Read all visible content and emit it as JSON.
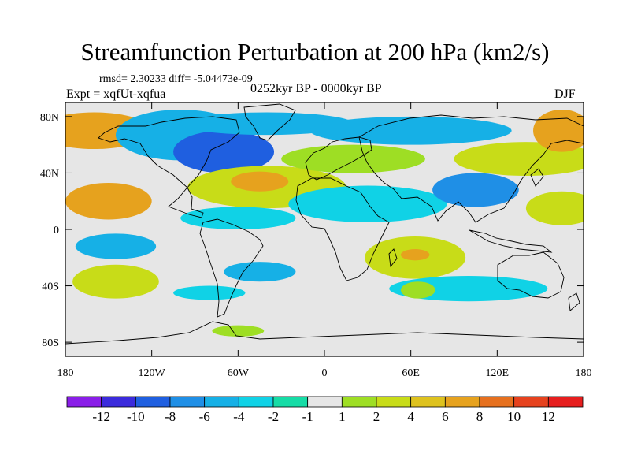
{
  "header": {
    "title": "Streamfunction Perturbation at 200 hPa (km2/s)",
    "stats": "rmsd= 2.30233 diff= -5.04473e-09",
    "experiment": "Expt = xqfUt-xqfua",
    "period": "0252kyr BP - 0000kyr BP",
    "season": "DJF"
  },
  "chart_data": {
    "type": "heatmap",
    "title": "Streamfunction Perturbation at 200 hPa (km2/s)",
    "xlabel": "",
    "ylabel": "",
    "xlim": [
      -180,
      180
    ],
    "ylim": [
      -90,
      90
    ],
    "x_ticks": [
      {
        "value": -180,
        "label": "180"
      },
      {
        "value": -120,
        "label": "120W"
      },
      {
        "value": -60,
        "label": "60W"
      },
      {
        "value": 0,
        "label": "0"
      },
      {
        "value": 60,
        "label": "60E"
      },
      {
        "value": 120,
        "label": "120E"
      },
      {
        "value": 180,
        "label": "180"
      }
    ],
    "y_ticks": [
      {
        "value": 80,
        "label": "80N"
      },
      {
        "value": 40,
        "label": "40N"
      },
      {
        "value": 0,
        "label": "0"
      },
      {
        "value": -40,
        "label": "40S"
      },
      {
        "value": -80,
        "label": "80S"
      }
    ],
    "colorbar": {
      "colors": [
        "#8a1ee8",
        "#3b2bdc",
        "#1f5fe0",
        "#1f8fe6",
        "#16b0e6",
        "#10d2e6",
        "#16dca6",
        "#e6e6e6",
        "#9ede24",
        "#c8dc18",
        "#dec21e",
        "#e6a21e",
        "#e6701e",
        "#e6421e",
        "#e61e1e"
      ],
      "labels": [
        "-12",
        "-10",
        "-8",
        "-6",
        "-4",
        "-2",
        "-1",
        "1",
        "2",
        "4",
        "6",
        "8",
        "10",
        "12"
      ]
    },
    "anomalies": [
      {
        "lon": -160,
        "lat": 70,
        "rx": 40,
        "ry": 13,
        "level": 6
      },
      {
        "lon": -150,
        "lat": 20,
        "rx": 30,
        "ry": 13,
        "level": 6
      },
      {
        "lon": -145,
        "lat": -12,
        "rx": 28,
        "ry": 9,
        "level": -4
      },
      {
        "lon": -145,
        "lat": -37,
        "rx": 30,
        "ry": 12,
        "level": 4
      },
      {
        "lon": -100,
        "lat": 67,
        "rx": 45,
        "ry": 18,
        "level": -4
      },
      {
        "lon": -70,
        "lat": 55,
        "rx": 35,
        "ry": 15,
        "level": -8
      },
      {
        "lon": -40,
        "lat": 75,
        "rx": 60,
        "ry": 8,
        "level": -4
      },
      {
        "lon": -40,
        "lat": 30,
        "rx": 55,
        "ry": 15,
        "level": 4
      },
      {
        "lon": -45,
        "lat": 34,
        "rx": 20,
        "ry": 7,
        "level": 6
      },
      {
        "lon": -60,
        "lat": 8,
        "rx": 40,
        "ry": 8,
        "level": -2
      },
      {
        "lon": -45,
        "lat": -30,
        "rx": 25,
        "ry": 7,
        "level": -4
      },
      {
        "lon": 20,
        "lat": 50,
        "rx": 50,
        "ry": 10,
        "level": 2
      },
      {
        "lon": 60,
        "lat": 70,
        "rx": 70,
        "ry": 10,
        "level": -4
      },
      {
        "lon": 30,
        "lat": 18,
        "rx": 55,
        "ry": 13,
        "level": -2
      },
      {
        "lon": 105,
        "lat": 28,
        "rx": 30,
        "ry": 12,
        "level": -6
      },
      {
        "lon": 140,
        "lat": 50,
        "rx": 50,
        "ry": 12,
        "level": 4
      },
      {
        "lon": 165,
        "lat": 70,
        "rx": 20,
        "ry": 15,
        "level": 6
      },
      {
        "lon": 165,
        "lat": 15,
        "rx": 25,
        "ry": 12,
        "level": 4
      },
      {
        "lon": 63,
        "lat": -20,
        "rx": 35,
        "ry": 15,
        "level": 4
      },
      {
        "lon": 63,
        "lat": -18,
        "rx": 10,
        "ry": 4,
        "level": 6
      },
      {
        "lon": 100,
        "lat": -42,
        "rx": 55,
        "ry": 9,
        "level": -2
      },
      {
        "lon": 65,
        "lat": -43,
        "rx": 12,
        "ry": 6,
        "level": 2
      },
      {
        "lon": -80,
        "lat": -45,
        "rx": 25,
        "ry": 5,
        "level": -2
      },
      {
        "lon": -60,
        "lat": -72,
        "rx": 18,
        "ry": 4,
        "level": 2
      }
    ]
  }
}
